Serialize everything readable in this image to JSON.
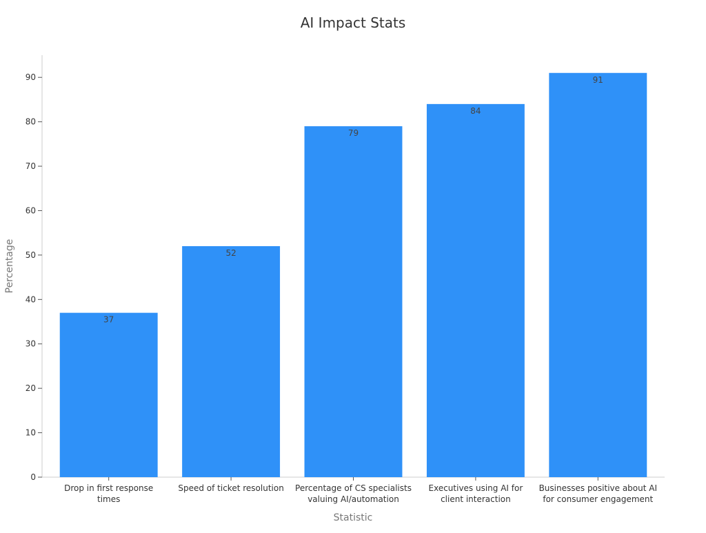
{
  "chart_data": {
    "type": "bar",
    "title": "AI Impact Stats",
    "xlabel": "Statistic",
    "ylabel": "Percentage",
    "ylim": [
      0,
      95
    ],
    "yticks": [
      0,
      10,
      20,
      30,
      40,
      50,
      60,
      70,
      80,
      90
    ],
    "categories": [
      [
        "Drop in first response",
        "times"
      ],
      [
        "Speed of ticket resolution"
      ],
      [
        "Percentage of CS specialists",
        "valuing AI/automation"
      ],
      [
        "Executives using AI for",
        "client interaction"
      ],
      [
        "Businesses positive about AI",
        "for consumer engagement"
      ]
    ],
    "values": [
      37,
      52,
      79,
      84,
      91
    ],
    "bar_color": "#2f91f8",
    "grid": false
  }
}
